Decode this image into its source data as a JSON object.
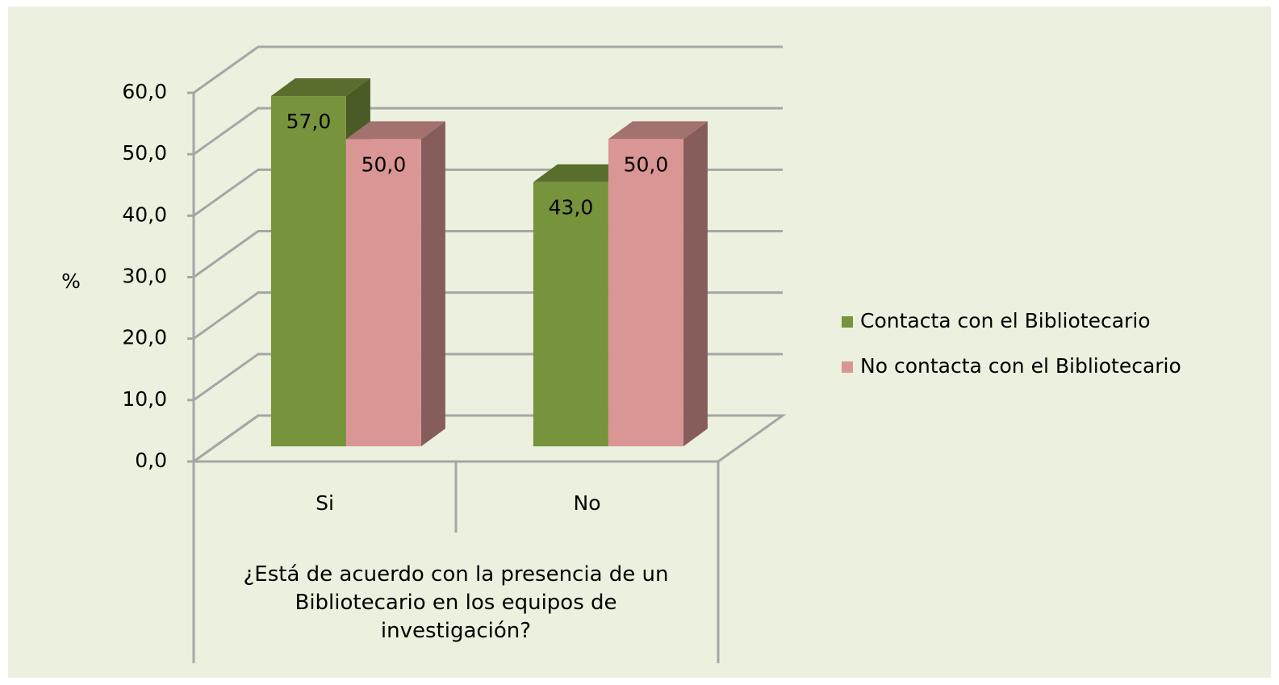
{
  "chart_data": {
    "type": "bar3d",
    "categories": [
      "Si",
      "No"
    ],
    "series": [
      {
        "name": "Contacta con el Bibliotecario",
        "color": "#77933c",
        "values": [
          57,
          43
        ],
        "value_labels": [
          "57,0",
          "43,0"
        ]
      },
      {
        "name": "No contacta con el Bibliotecario",
        "color": "#d99694",
        "values": [
          50,
          50
        ],
        "value_labels": [
          "50,0",
          "50,0"
        ]
      }
    ],
    "ylabel": "%",
    "xlabel": "¿Está de acuerdo con la presencia de un Bibliotecario en los equipos de investigación?",
    "ylim": [
      0,
      60
    ],
    "yticks": [
      {
        "value": 0,
        "label": "0,0"
      },
      {
        "value": 10,
        "label": "10,0"
      },
      {
        "value": 20,
        "label": "20,0"
      },
      {
        "value": 30,
        "label": "30,0"
      },
      {
        "value": 40,
        "label": "40,0"
      },
      {
        "value": 50,
        "label": "50,0"
      },
      {
        "value": 60,
        "label": "60,0"
      }
    ],
    "grid": true,
    "legend": "right"
  }
}
